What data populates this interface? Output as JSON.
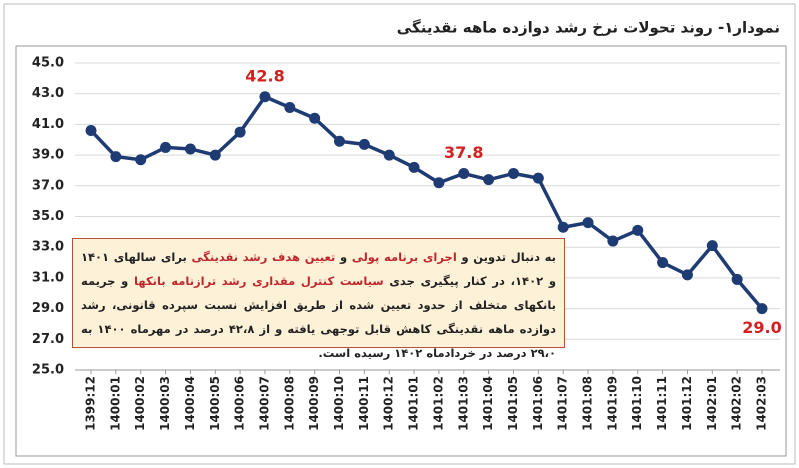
{
  "chart_data": {
    "type": "line",
    "title": "نمودار۱- روند تحولات نرخ رشد دوازده ماهه نقدینگی",
    "categories": [
      "1399:12",
      "1400:01",
      "1400:02",
      "1400:03",
      "1400:04",
      "1400:05",
      "1400:06",
      "1400:07",
      "1400:08",
      "1400:09",
      "1400:10",
      "1400:11",
      "1400:12",
      "1401:01",
      "1401:02",
      "1401:03",
      "1401:04",
      "1401:05",
      "1401:06",
      "1401:07",
      "1401:08",
      "1401:09",
      "1401:10",
      "1401:11",
      "1401:12",
      "1402:01",
      "1402:02",
      "1402:03"
    ],
    "series": [
      {
        "color": "#1f3b73",
        "values": [
          40.6,
          38.9,
          38.7,
          39.5,
          39.4,
          39.0,
          40.5,
          42.8,
          42.1,
          41.4,
          39.9,
          39.7,
          39.0,
          38.2,
          37.2,
          37.8,
          37.4,
          37.8,
          37.5,
          34.3,
          34.6,
          33.4,
          34.1,
          32.0,
          31.2,
          33.1,
          30.9,
          29.0
        ],
        "value_labels": [
          null,
          null,
          null,
          null,
          null,
          null,
          null,
          "42.8",
          null,
          null,
          null,
          null,
          null,
          null,
          null,
          "37.8",
          null,
          null,
          null,
          null,
          null,
          null,
          null,
          null,
          null,
          null,
          null,
          "29.0"
        ],
        "label_color": "#d42020"
      }
    ],
    "ylim": [
      25,
      45
    ],
    "yticks": [
      {
        "value": 25,
        "label": "25.0"
      },
      {
        "value": 27,
        "label": "27.0"
      },
      {
        "value": 29,
        "label": "29.0"
      },
      {
        "value": 31,
        "label": "31.0"
      },
      {
        "value": 33,
        "label": "33.0"
      },
      {
        "value": 35,
        "label": "35.0"
      },
      {
        "value": 37,
        "label": "37.0"
      },
      {
        "value": 39,
        "label": "39.0"
      },
      {
        "value": 41,
        "label": "41.0"
      },
      {
        "value": 43,
        "label": "43.0"
      },
      {
        "value": 45,
        "label": "45.0"
      }
    ],
    "grid": true,
    "annotation": [
      {
        "text": "به دنبال تدوین و",
        "color": "#222222"
      },
      {
        "text": "اجرای برنامه پولی",
        "color": "#c0272d"
      },
      {
        "text": "و",
        "color": "#222222"
      },
      {
        "text": "تعیین هدف رشد نقدینگی",
        "color": "#c0272d"
      },
      {
        "text": "برای سالهای ۱۴۰۱ و ۱۴۰۲، در کنار پیگیری جدی",
        "color": "#222222"
      },
      {
        "text": "سیاست کنترل مقداری رشد ترازنامه بانکها",
        "color": "#c0272d"
      },
      {
        "text": "و جریمه بانکهای متخلف از حدود تعیین شده از طریق افزایش نسبت سپرده قانونی، رشد دوازده ماهه نقدینگی کاهش قابل توجهی یافته و از ۴۲،۸ درصد در مهرماه ۱۴۰۰ به ۲۹،۰ درصد در خردادماه ۱۴۰۲ رسیده است.",
        "color": "#222222"
      }
    ]
  }
}
